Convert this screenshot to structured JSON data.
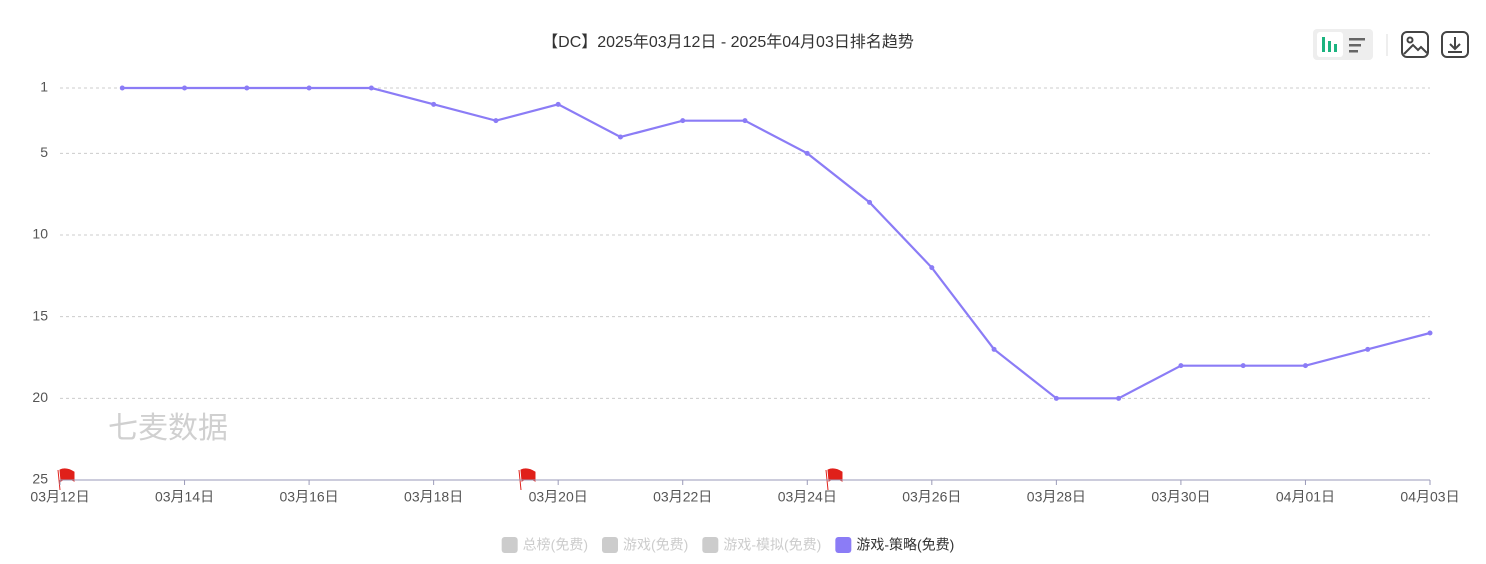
{
  "chart_data": {
    "type": "line",
    "title": "【DC】2025年03月12日 - 2025年04月03日排名趋势",
    "watermark": "七麦数据",
    "categories": [
      "03月12日",
      null,
      "03月14日",
      null,
      "03月16日",
      null,
      "03月18日",
      null,
      "03月20日",
      null,
      "03月22日",
      null,
      "03月24日",
      null,
      "03月26日",
      null,
      "03月28日",
      null,
      "03月30日",
      null,
      "04月01日",
      null,
      "04月03日"
    ],
    "series": [
      {
        "name": "游戏-策略(免费)",
        "color": "#8b7cf6",
        "values": [
          null,
          1,
          1,
          1,
          1,
          1,
          2,
          3,
          2,
          4,
          3,
          3,
          5,
          8,
          12,
          17,
          20,
          20,
          18,
          18,
          18,
          17,
          16
        ]
      }
    ],
    "hidden_series": [
      "总榜(免费)",
      "游戏(免费)",
      "游戏-模拟(免费)"
    ],
    "ylim": [
      1,
      25
    ],
    "yticks": [
      1,
      5,
      10,
      15,
      20,
      25
    ],
    "y_inverted": true,
    "grid": true
  }
}
